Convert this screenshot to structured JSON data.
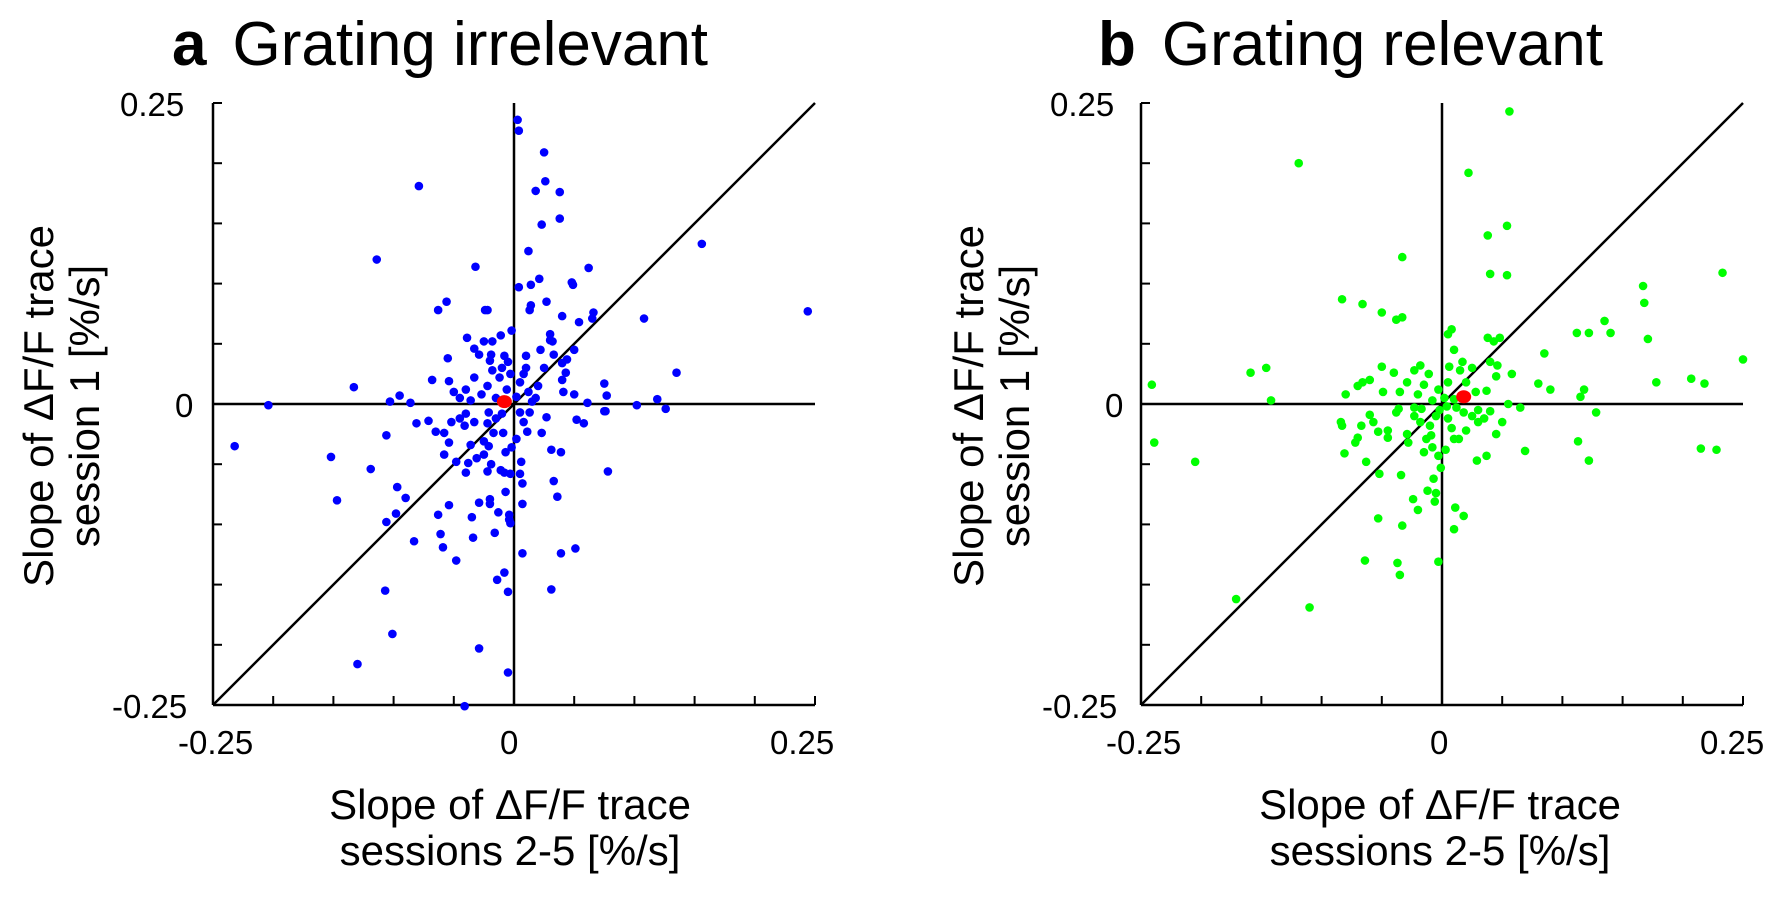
{
  "chart_data": [
    {
      "type": "scatter",
      "panel_letter": "a",
      "title": "Grating irrelevant",
      "xlabel_line1": "Slope of ΔF/F trace",
      "xlabel_line2": "sessions 2-5 [%/s]",
      "ylabel_line1": "Slope of ΔF/F trace",
      "ylabel_line2": "session 1 [%/s]",
      "xlim": [
        -0.25,
        0.25
      ],
      "ylim": [
        -0.25,
        0.25
      ],
      "xticks": [
        "-0.25",
        "0",
        "0.25"
      ],
      "yticks": [
        "0.25",
        "0",
        "-0.25"
      ],
      "minor_tick_step": 0.05,
      "reference_lines": [
        "x=0",
        "y=0",
        "y=x"
      ],
      "grid": false,
      "point_color": "#0000ff",
      "mean_color": "#ff0000",
      "mean": [
        -0.008,
        0.002
      ],
      "points": [
        [
          0.003,
          0.236
        ],
        [
          0.004,
          0.227
        ],
        [
          0.025,
          0.209
        ],
        [
          0.026,
          0.185
        ],
        [
          0.018,
          0.177
        ],
        [
          0.038,
          0.176
        ],
        [
          0.038,
          0.154
        ],
        [
          0.023,
          0.149
        ],
        [
          -0.079,
          0.181
        ],
        [
          -0.114,
          0.12
        ],
        [
          -0.032,
          0.114
        ],
        [
          0.012,
          0.127
        ],
        [
          0.062,
          0.113
        ],
        [
          0.156,
          0.133
        ],
        [
          0.244,
          0.077
        ],
        [
          0.108,
          0.071
        ],
        [
          0.021,
          0.104
        ],
        [
          0.014,
          0.099
        ],
        [
          0.004,
          0.097
        ],
        [
          0.048,
          0.101
        ],
        [
          0.049,
          0.099
        ],
        [
          0.027,
          0.085
        ],
        [
          0.014,
          0.082
        ],
        [
          0.013,
          0.078
        ],
        [
          -0.056,
          0.085
        ],
        [
          -0.063,
          0.078
        ],
        [
          -0.024,
          0.078
        ],
        [
          -0.022,
          0.078
        ],
        [
          0.04,
          0.073
        ],
        [
          0.054,
          0.068
        ],
        [
          0.065,
          0.071
        ],
        [
          0.066,
          0.076
        ],
        [
          -0.002,
          0.061
        ],
        [
          -0.011,
          0.057
        ],
        [
          -0.039,
          0.055
        ],
        [
          -0.025,
          0.052
        ],
        [
          -0.018,
          0.052
        ],
        [
          0.03,
          0.058
        ],
        [
          0.03,
          0.053
        ],
        [
          0.032,
          0.052
        ],
        [
          -0.033,
          0.046
        ],
        [
          -0.029,
          0.041
        ],
        [
          -0.019,
          0.041
        ],
        [
          -0.055,
          0.038
        ],
        [
          0.01,
          0.04
        ],
        [
          0.022,
          0.045
        ],
        [
          0.033,
          0.041
        ],
        [
          0.05,
          0.045
        ],
        [
          0.044,
          0.037
        ],
        [
          0.04,
          0.034
        ],
        [
          0.135,
          0.026
        ],
        [
          -0.133,
          0.014
        ],
        [
          -0.204,
          -0.001
        ],
        [
          -0.095,
          0.007
        ],
        [
          -0.103,
          0.002
        ],
        [
          -0.086,
          0.001
        ],
        [
          -0.068,
          0.02
        ],
        [
          -0.054,
          0.019
        ],
        [
          -0.05,
          0.01
        ],
        [
          0.075,
          0.017
        ],
        [
          0.077,
          0.007
        ],
        [
          0.075,
          -0.006
        ],
        [
          0.102,
          -0.001
        ],
        [
          0.119,
          0.004
        ],
        [
          0.126,
          -0.004
        ],
        [
          0.061,
          0.001
        ],
        [
          0.05,
          0.008
        ],
        [
          0.041,
          0.01
        ],
        [
          0.043,
          0.026
        ],
        [
          0.04,
          0.02
        ],
        [
          -0.01,
          0.03
        ],
        [
          -0.005,
          0.035
        ],
        [
          -0.012,
          0.022
        ],
        [
          -0.018,
          0.028
        ],
        [
          -0.022,
          0.015
        ],
        [
          -0.027,
          0.008
        ],
        [
          -0.015,
          0.005
        ],
        [
          -0.006,
          0.012
        ],
        [
          0.005,
          0.018
        ],
        [
          0.008,
          0.025
        ],
        [
          0.012,
          0.01
        ],
        [
          0.018,
          0.005
        ],
        [
          0.01,
          0.03
        ],
        [
          -0.003,
          0.025
        ],
        [
          -0.02,
          0.036
        ],
        [
          -0.033,
          0.022
        ],
        [
          -0.04,
          0.012
        ],
        [
          -0.036,
          0.003
        ],
        [
          0.002,
          0.006
        ],
        [
          0.02,
          0.015
        ],
        [
          0.025,
          0.03
        ],
        [
          0.015,
          0.002
        ],
        [
          -0.045,
          0.005
        ],
        [
          -0.008,
          0.04
        ],
        [
          -0.232,
          -0.035
        ],
        [
          -0.152,
          -0.044
        ],
        [
          -0.147,
          -0.08
        ],
        [
          -0.119,
          -0.054
        ],
        [
          -0.106,
          -0.026
        ],
        [
          -0.097,
          -0.069
        ],
        [
          -0.09,
          -0.078
        ],
        [
          -0.098,
          -0.091
        ],
        [
          -0.106,
          -0.098
        ],
        [
          -0.083,
          -0.114
        ],
        [
          -0.107,
          -0.155
        ],
        [
          -0.101,
          -0.191
        ],
        [
          -0.13,
          -0.216
        ],
        [
          -0.041,
          -0.251
        ],
        [
          -0.029,
          -0.203
        ],
        [
          -0.005,
          -0.223
        ],
        [
          -0.005,
          -0.156
        ],
        [
          -0.014,
          -0.146
        ],
        [
          -0.008,
          -0.14
        ],
        [
          -0.048,
          -0.13
        ],
        [
          -0.059,
          -0.119
        ],
        [
          -0.061,
          -0.108
        ],
        [
          -0.034,
          -0.111
        ],
        [
          -0.016,
          -0.107
        ],
        [
          -0.063,
          -0.092
        ],
        [
          -0.054,
          -0.084
        ],
        [
          -0.035,
          -0.094
        ],
        [
          -0.029,
          -0.082
        ],
        [
          -0.02,
          -0.079
        ],
        [
          -0.02,
          -0.083
        ],
        [
          -0.013,
          -0.09
        ],
        [
          -0.004,
          -0.092
        ],
        [
          -0.004,
          -0.096
        ],
        [
          -0.003,
          -0.099
        ],
        [
          -0.007,
          -0.073
        ],
        [
          0.007,
          -0.066
        ],
        [
          0.007,
          -0.083
        ],
        [
          0.007,
          -0.124
        ],
        [
          0.039,
          -0.124
        ],
        [
          0.051,
          -0.12
        ],
        [
          0.031,
          -0.154
        ],
        [
          0.033,
          -0.064
        ],
        [
          0.036,
          -0.077
        ],
        [
          0.031,
          -0.038
        ],
        [
          0.039,
          -0.04
        ],
        [
          0.078,
          -0.056
        ],
        [
          0.023,
          -0.024
        ],
        [
          0.027,
          -0.011
        ],
        [
          0.052,
          -0.013
        ],
        [
          0.058,
          -0.016
        ],
        [
          0.076,
          -0.006
        ],
        [
          -0.071,
          -0.014
        ],
        [
          -0.081,
          -0.016
        ],
        [
          -0.065,
          -0.023
        ],
        [
          -0.058,
          -0.024
        ],
        [
          -0.054,
          -0.032
        ],
        [
          -0.058,
          -0.042
        ],
        [
          -0.048,
          -0.048
        ],
        [
          -0.04,
          -0.057
        ],
        [
          -0.038,
          -0.049
        ],
        [
          -0.031,
          -0.045
        ],
        [
          -0.022,
          -0.056
        ],
        [
          -0.011,
          -0.055
        ],
        [
          -0.008,
          -0.057
        ],
        [
          -0.003,
          -0.058
        ],
        [
          0.005,
          -0.058
        ],
        [
          0.006,
          -0.048
        ],
        [
          0.002,
          -0.029
        ],
        [
          0.011,
          -0.023
        ],
        [
          -0.036,
          -0.034
        ],
        [
          -0.025,
          -0.031
        ],
        [
          -0.021,
          -0.035
        ],
        [
          -0.017,
          -0.024
        ],
        [
          -0.009,
          -0.024
        ],
        [
          -0.007,
          -0.04
        ],
        [
          -0.002,
          -0.036
        ],
        [
          -0.019,
          -0.05
        ],
        [
          -0.025,
          -0.042
        ],
        [
          -0.041,
          -0.018
        ],
        [
          -0.052,
          -0.015
        ],
        [
          -0.045,
          -0.012
        ],
        [
          -0.04,
          -0.008
        ],
        [
          -0.033,
          -0.015
        ],
        [
          -0.022,
          -0.016
        ],
        [
          -0.021,
          -0.007
        ],
        [
          -0.01,
          -0.008
        ],
        [
          0.005,
          -0.007
        ],
        [
          0.013,
          -0.007
        ],
        [
          0.008,
          -0.015
        ],
        [
          -0.015,
          -0.012
        ]
      ]
    },
    {
      "type": "scatter",
      "panel_letter": "b",
      "title": "Grating relevant",
      "xlabel_line1": "Slope of ΔF/F trace",
      "xlabel_line2": "sessions 2-5 [%/s]",
      "ylabel_line1": "Slope of ΔF/F trace",
      "ylabel_line2": "session 1 [%/s]",
      "xlim": [
        -0.25,
        0.25
      ],
      "ylim": [
        -0.25,
        0.25
      ],
      "xticks": [
        "-0.25",
        "0",
        "0.25"
      ],
      "yticks": [
        "0.25",
        "0",
        "-0.25"
      ],
      "minor_tick_step": 0.05,
      "reference_lines": [
        "x=0",
        "y=0",
        "y=x"
      ],
      "grid": false,
      "point_color": "#00ff00",
      "mean_color": "#ff0000",
      "mean": [
        0.018,
        0.006
      ],
      "points": [
        [
          0.056,
          0.243
        ],
        [
          0.022,
          0.192
        ],
        [
          0.054,
          0.148
        ],
        [
          0.038,
          0.14
        ],
        [
          -0.033,
          0.122
        ],
        [
          0.04,
          0.108
        ],
        [
          0.054,
          0.107
        ],
        [
          0.233,
          0.109
        ],
        [
          0.167,
          0.098
        ],
        [
          0.168,
          0.084
        ],
        [
          0.135,
          0.069
        ],
        [
          0.112,
          0.059
        ],
        [
          0.122,
          0.059
        ],
        [
          0.14,
          0.059
        ],
        [
          0.171,
          0.054
        ],
        [
          0.085,
          0.042
        ],
        [
          0.25,
          0.037
        ],
        [
          0.178,
          0.018
        ],
        [
          0.207,
          0.021
        ],
        [
          0.218,
          0.017
        ],
        [
          0.08,
          0.017
        ],
        [
          0.09,
          0.012
        ],
        [
          0.118,
          0.012
        ],
        [
          0.115,
          0.006
        ],
        [
          0.128,
          -0.007
        ],
        [
          0.113,
          -0.031
        ],
        [
          0.122,
          -0.047
        ],
        [
          0.215,
          -0.037
        ],
        [
          0.228,
          -0.038
        ],
        [
          0.069,
          -0.039
        ],
        [
          0.029,
          -0.047
        ],
        [
          0.037,
          -0.043
        ],
        [
          -0.119,
          0.2
        ],
        [
          -0.066,
          0.083
        ],
        [
          -0.038,
          0.07
        ],
        [
          -0.033,
          0.072
        ],
        [
          -0.083,
          0.087
        ],
        [
          -0.05,
          0.076
        ],
        [
          -0.146,
          0.03
        ],
        [
          -0.159,
          0.026
        ],
        [
          -0.241,
          0.016
        ],
        [
          -0.142,
          0.003
        ],
        [
          -0.08,
          0.008
        ],
        [
          -0.066,
          0.018
        ],
        [
          -0.049,
          0.01
        ],
        [
          -0.035,
          0.01
        ],
        [
          -0.029,
          0.018
        ],
        [
          -0.011,
          0.025
        ],
        [
          0.006,
          0.031
        ],
        [
          0.01,
          0.045
        ],
        [
          0.005,
          0.058
        ],
        [
          0.008,
          0.062
        ],
        [
          0.017,
          0.035
        ],
        [
          0.015,
          0.028
        ],
        [
          0.025,
          0.03
        ],
        [
          0.038,
          0.055
        ],
        [
          0.043,
          0.052
        ],
        [
          0.04,
          0.035
        ],
        [
          0.046,
          0.032
        ],
        [
          0.048,
          0.055
        ],
        [
          0.058,
          0.025
        ],
        [
          0.045,
          0.023
        ],
        [
          0.037,
          0.011
        ],
        [
          0.028,
          0.01
        ],
        [
          0.02,
          0.018
        ],
        [
          0.005,
          0.018
        ],
        [
          -0.003,
          0.012
        ],
        [
          -0.015,
          0.016
        ],
        [
          -0.02,
          0.008
        ],
        [
          -0.008,
          0.003
        ],
        [
          0.002,
          0.005
        ],
        [
          0.01,
          0.004
        ],
        [
          -0.05,
          0.031
        ],
        [
          -0.04,
          0.026
        ],
        [
          -0.06,
          0.02
        ],
        [
          -0.07,
          0.015
        ],
        [
          -0.018,
          0.032
        ],
        [
          -0.023,
          0.028
        ],
        [
          -0.239,
          -0.032
        ],
        [
          -0.205,
          -0.048
        ],
        [
          -0.171,
          -0.162
        ],
        [
          -0.11,
          -0.169
        ],
        [
          -0.064,
          -0.13
        ],
        [
          -0.037,
          -0.132
        ],
        [
          -0.035,
          -0.142
        ],
        [
          -0.003,
          -0.131
        ],
        [
          -0.053,
          -0.095
        ],
        [
          -0.033,
          -0.101
        ],
        [
          0.01,
          -0.104
        ],
        [
          0.011,
          -0.086
        ],
        [
          0.018,
          -0.093
        ],
        [
          -0.052,
          -0.058
        ],
        [
          -0.034,
          -0.059
        ],
        [
          -0.024,
          -0.079
        ],
        [
          -0.02,
          -0.088
        ],
        [
          -0.012,
          -0.072
        ],
        [
          -0.007,
          -0.062
        ],
        [
          -0.006,
          -0.081
        ],
        [
          -0.005,
          -0.074
        ],
        [
          -0.063,
          -0.048
        ],
        [
          -0.081,
          -0.041
        ],
        [
          -0.072,
          -0.032
        ],
        [
          -0.07,
          -0.028
        ],
        [
          -0.084,
          -0.015
        ],
        [
          -0.083,
          -0.018
        ],
        [
          -0.001,
          -0.053
        ],
        [
          -0.008,
          -0.036
        ],
        [
          -0.067,
          -0.018
        ],
        [
          -0.06,
          -0.009
        ],
        [
          -0.057,
          -0.015
        ],
        [
          -0.053,
          -0.023
        ],
        [
          -0.045,
          -0.022
        ],
        [
          -0.045,
          -0.028
        ],
        [
          -0.038,
          -0.007
        ],
        [
          -0.036,
          -0.004
        ],
        [
          -0.029,
          -0.025
        ],
        [
          -0.023,
          -0.01
        ],
        [
          -0.023,
          -0.003
        ],
        [
          -0.017,
          -0.004
        ],
        [
          -0.018,
          -0.015
        ],
        [
          -0.013,
          -0.029
        ],
        [
          -0.009,
          -0.026
        ],
        [
          -0.005,
          -0.01
        ],
        [
          0.005,
          -0.012
        ],
        [
          0.008,
          -0.02
        ],
        [
          0.01,
          -0.029
        ],
        [
          0.014,
          -0.029
        ],
        [
          0.018,
          -0.007
        ],
        [
          0.025,
          -0.01
        ],
        [
          0.03,
          -0.015
        ],
        [
          0.035,
          -0.012
        ],
        [
          0.04,
          -0.006
        ],
        [
          0.02,
          -0.022
        ],
        [
          -0.028,
          -0.032
        ],
        [
          -0.015,
          -0.04
        ],
        [
          -0.003,
          -0.043
        ],
        [
          0.003,
          -0.038
        ],
        [
          -0.01,
          -0.018
        ],
        [
          -0.002,
          -0.005
        ],
        [
          0.004,
          -0.002
        ],
        [
          0.012,
          -0.003
        ],
        [
          0.03,
          -0.005
        ],
        [
          0.055,
          0.0
        ],
        [
          0.065,
          -0.003
        ],
        [
          0.045,
          -0.025
        ],
        [
          0.05,
          -0.015
        ]
      ]
    }
  ]
}
